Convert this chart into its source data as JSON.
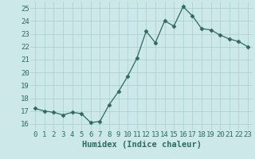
{
  "x": [
    0,
    1,
    2,
    3,
    4,
    5,
    6,
    7,
    8,
    9,
    10,
    11,
    12,
    13,
    14,
    15,
    16,
    17,
    18,
    19,
    20,
    21,
    22,
    23
  ],
  "y": [
    17.2,
    17.0,
    16.9,
    16.7,
    16.9,
    16.8,
    16.1,
    16.2,
    17.5,
    18.5,
    19.7,
    21.1,
    23.2,
    22.3,
    24.0,
    23.6,
    25.1,
    24.4,
    23.4,
    23.3,
    22.9,
    22.6,
    22.4,
    22.0
  ],
  "xlabel": "Humidex (Indice chaleur)",
  "xlim": [
    -0.5,
    23.5
  ],
  "ylim": [
    15.5,
    25.5
  ],
  "yticks": [
    16,
    17,
    18,
    19,
    20,
    21,
    22,
    23,
    24,
    25
  ],
  "xticks": [
    0,
    1,
    2,
    3,
    4,
    5,
    6,
    7,
    8,
    9,
    10,
    11,
    12,
    13,
    14,
    15,
    16,
    17,
    18,
    19,
    20,
    21,
    22,
    23
  ],
  "line_color": "#2e6b5e",
  "marker": "D",
  "marker_size": 2.5,
  "bg_color": "#cce8e8",
  "grid_color": "#aacece",
  "tick_color": "#2e6b5e",
  "label_color": "#2e6b5e",
  "xlabel_fontsize": 7.5,
  "tick_fontsize": 6.5
}
